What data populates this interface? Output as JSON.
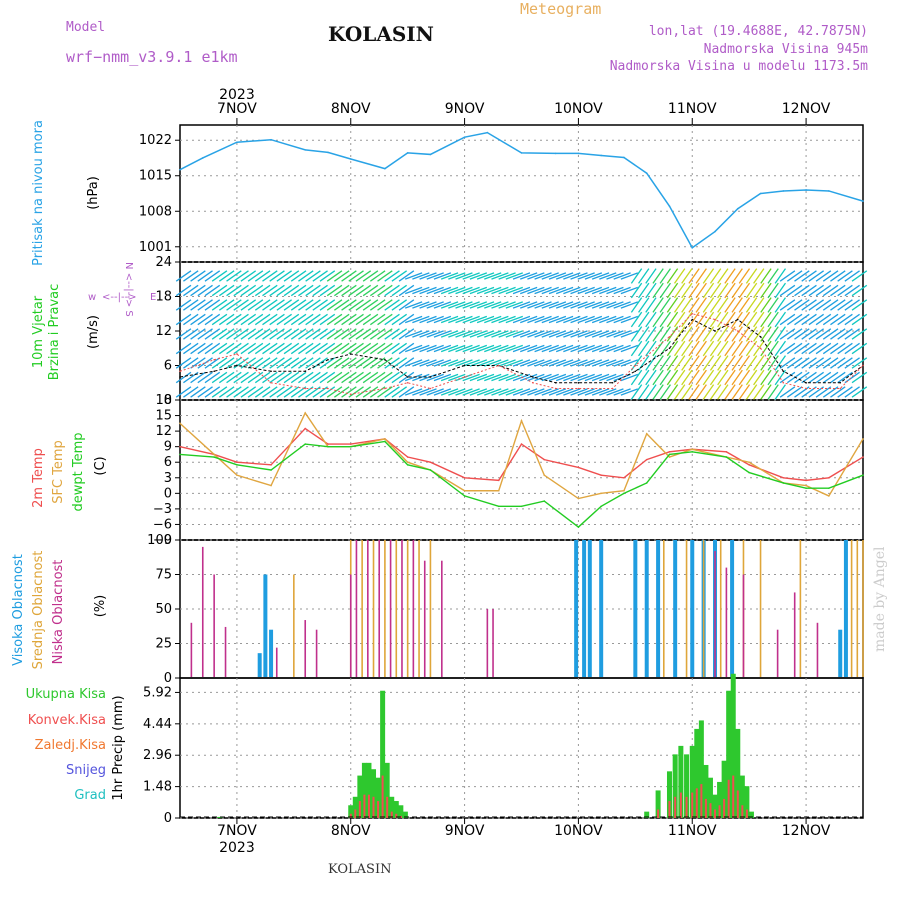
{
  "header": {
    "model_label": "Model",
    "model_name": "wrf−nmm_v3.9.1  e1km",
    "title": "KOLASIN",
    "meteogram_label": "Meteogram",
    "lonlat": "lon,lat (19.4688E, 42.7875N)",
    "altitude": "Nadmorska Visina 945m",
    "model_altitude": "Nadmorska Visina u modelu 1173.5m"
  },
  "footer": {
    "station": "KOLASIN"
  },
  "watermark": "made by Angel",
  "colors": {
    "pressure": "#29a3e6",
    "temp2m": "#ef4f4f",
    "sfc": "#e0a640",
    "dewpt": "#22cc22",
    "cloud_high": "#1f9de0",
    "cloud_mid": "#dfa63a",
    "cloud_low": "#c0308c",
    "precip_total": "#2ec82e",
    "precip_conv": "#ef4f4f",
    "precip_frozen": "#f07830",
    "snow": "#5555dd",
    "grad": "#20c0c0",
    "label_magenta": "#b05cc8"
  },
  "chart_data": [
    {
      "type": "line",
      "title": "Pritisak na nivou mora",
      "ylabel": "(hPa)",
      "ylim": [
        998,
        1025
      ],
      "yticks": [
        "1001",
        "1008",
        "1015",
        "1022"
      ],
      "top_year": "2023",
      "x_categories": [
        "7NOV",
        "8NOV",
        "9NOV",
        "10NOV",
        "11NOV",
        "12NOV"
      ],
      "x": [
        6.5,
        6.7,
        7.0,
        7.3,
        7.6,
        7.8,
        8.0,
        8.3,
        8.5,
        8.7,
        9.0,
        9.2,
        9.5,
        9.8,
        10.0,
        10.2,
        10.4,
        10.6,
        10.8,
        11.0,
        11.2,
        11.4,
        11.6,
        11.8,
        12.0,
        12.2,
        12.5
      ],
      "series": [
        {
          "values": [
            1016.2,
            1018.5,
            1021.6,
            1022.1,
            1020.1,
            1019.6,
            1018.3,
            1016.4,
            1019.5,
            1019.2,
            1022.6,
            1023.5,
            1019.5,
            1019.4,
            1019.4,
            1019.0,
            1018.6,
            1015.5,
            1009.0,
            1000.8,
            1004.0,
            1008.5,
            1011.5,
            1012.0,
            1012.2,
            1012.0,
            1010.0
          ]
        }
      ],
      "grid": true
    },
    {
      "type": "scatter",
      "title": "10m Vjetar Brzina i Pravac",
      "ylabel": "(m/s)",
      "ylim": [
        0,
        24
      ],
      "yticks": [
        "0",
        "6",
        "12",
        "18",
        "24"
      ],
      "compass_labels": [
        "w",
        "<--|-->",
        "E",
        "N",
        "S"
      ],
      "x": [
        6.5,
        6.8,
        7.0,
        7.3,
        7.6,
        7.8,
        8.0,
        8.3,
        8.5,
        8.7,
        9.0,
        9.3,
        9.6,
        9.8,
        10.0,
        10.3,
        10.5,
        10.8,
        11.0,
        11.2,
        11.4,
        11.6,
        11.8,
        12.0,
        12.3,
        12.5
      ],
      "series": [
        {
          "values": [
            4,
            5,
            6,
            5,
            5,
            7,
            8,
            7,
            4,
            4,
            6,
            6,
            4,
            3,
            3,
            3,
            5,
            9,
            14,
            12,
            14,
            11,
            5,
            3,
            3,
            6
          ]
        },
        {
          "values": [
            5,
            7,
            8,
            3,
            2,
            2,
            1,
            2,
            3,
            2,
            4,
            6,
            3,
            2,
            2,
            2,
            6,
            11,
            15,
            14,
            12,
            9,
            3,
            2,
            2,
            6
          ]
        }
      ],
      "grid": true
    },
    {
      "type": "line",
      "title": "2m Temp / SFC Temp / dewpt Temp",
      "ylabel": "(C)",
      "ylim": [
        -9,
        18
      ],
      "yticks": [
        "−9",
        "−6",
        "−3",
        "0",
        "3",
        "6",
        "9",
        "12",
        "15",
        "18"
      ],
      "x": [
        6.5,
        6.8,
        7.0,
        7.3,
        7.6,
        7.8,
        8.0,
        8.3,
        8.5,
        8.7,
        9.0,
        9.3,
        9.5,
        9.7,
        10.0,
        10.2,
        10.4,
        10.6,
        10.8,
        11.0,
        11.3,
        11.5,
        11.8,
        12.0,
        12.2,
        12.5
      ],
      "series": [
        {
          "name": "2m Temp",
          "values": [
            9.0,
            7.5,
            6.0,
            5.5,
            12.5,
            9.5,
            9.5,
            10.5,
            7.0,
            6.0,
            3.0,
            2.5,
            9.5,
            6.5,
            5.0,
            3.5,
            3.0,
            6.5,
            8.0,
            8.5,
            8.0,
            5.5,
            3.0,
            2.5,
            3.0,
            7.0
          ]
        },
        {
          "name": "SFC Temp",
          "values": [
            13.5,
            7.5,
            3.5,
            1.5,
            15.5,
            9.0,
            9.0,
            10.5,
            6.0,
            4.5,
            0.5,
            0.5,
            14.0,
            3.5,
            -1.0,
            0.0,
            0.5,
            11.5,
            7.0,
            8.5,
            7.0,
            6.0,
            2.0,
            1.5,
            -0.5,
            10.5
          ]
        },
        {
          "name": "dewpt Temp",
          "values": [
            7.5,
            7.0,
            5.5,
            4.5,
            9.5,
            9.0,
            9.0,
            10.0,
            5.5,
            4.5,
            -0.5,
            -2.5,
            -2.5,
            -1.5,
            -6.5,
            -2.5,
            0.0,
            2.0,
            7.5,
            8.0,
            7.0,
            4.0,
            2.0,
            1.0,
            1.0,
            3.5
          ]
        }
      ],
      "grid": true
    },
    {
      "type": "bar",
      "title": "Visoka Oblacnost / Srednja Oblacnost / Niska Oblacnost",
      "ylabel": "(%)",
      "ylim": [
        0,
        100
      ],
      "yticks": [
        "0",
        "25",
        "50",
        "75",
        "100"
      ],
      "series": [
        {
          "name": "Visoka Oblacnost",
          "x": [
            7.2,
            7.25,
            7.3,
            9.98,
            10.05,
            10.1,
            10.2,
            10.5,
            10.6,
            10.7,
            10.85,
            11.0,
            11.1,
            11.2,
            11.35,
            12.3,
            12.35
          ],
          "values": [
            18,
            75,
            35,
            100,
            100,
            100,
            100,
            100,
            100,
            100,
            100,
            100,
            100,
            100,
            100,
            35,
            100
          ]
        },
        {
          "name": "Srednja Oblacnost",
          "x": [
            7.5,
            8.0,
            8.1,
            8.2,
            8.3,
            8.4,
            8.5,
            8.6,
            8.7,
            10.75,
            10.95,
            11.1,
            11.25,
            11.45,
            11.6,
            11.95,
            12.4,
            12.45,
            12.5
          ],
          "values": [
            75,
            100,
            100,
            100,
            100,
            100,
            100,
            100,
            100,
            100,
            100,
            100,
            100,
            100,
            100,
            100,
            100,
            100,
            100
          ]
        },
        {
          "name": "Niska Oblacnost",
          "x": [
            6.6,
            6.7,
            6.8,
            6.9,
            7.35,
            7.6,
            7.7,
            8.0,
            8.05,
            8.15,
            8.25,
            8.35,
            8.45,
            8.55,
            8.65,
            8.8,
            9.2,
            9.25,
            11.2,
            11.3,
            11.45,
            11.75,
            11.9,
            12.1
          ],
          "values": [
            40,
            95,
            75,
            37,
            22,
            42,
            35,
            75,
            100,
            100,
            100,
            100,
            100,
            100,
            85,
            85,
            50,
            50,
            92,
            80,
            75,
            35,
            62,
            40
          ]
        }
      ],
      "grid": true
    },
    {
      "type": "bar",
      "title": "1hr Precip",
      "ylabel": "1hr Precip (mm)",
      "ylim": [
        0,
        6.6
      ],
      "yticks": [
        "0",
        "1.48",
        "2.96",
        "4.44",
        "5.92"
      ],
      "x_categories": [
        "7NOV",
        "8NOV",
        "9NOV",
        "10NOV",
        "11NOV",
        "12NOV"
      ],
      "bottom_year": "2023",
      "legend": [
        "Ukupna Kisa",
        "Konvek.Kisa",
        "Zaledj.Kisa",
        "Snijeg",
        "Grad"
      ],
      "x": [
        6.85,
        8.0,
        8.04,
        8.08,
        8.12,
        8.16,
        8.2,
        8.24,
        8.28,
        8.32,
        8.36,
        8.4,
        8.44,
        8.48,
        10.6,
        10.7,
        10.8,
        10.85,
        10.9,
        10.95,
        11.0,
        11.04,
        11.08,
        11.12,
        11.16,
        11.2,
        11.24,
        11.28,
        11.32,
        11.36,
        11.4,
        11.44,
        11.48,
        11.52
      ],
      "series": [
        {
          "name": "Ukupna Kisa",
          "values": [
            0.05,
            0.6,
            1.0,
            2.0,
            2.6,
            2.6,
            2.3,
            1.9,
            6.0,
            2.6,
            1.0,
            0.8,
            0.6,
            0.3,
            0.3,
            1.3,
            2.2,
            3.0,
            3.4,
            3.0,
            3.4,
            4.2,
            4.6,
            2.5,
            1.9,
            1.1,
            1.7,
            2.7,
            6.0,
            6.8,
            4.2,
            2.0,
            1.5,
            0.3
          ]
        },
        {
          "name": "Konvek.Kisa",
          "values": [
            0,
            0.2,
            0.4,
            0.8,
            1.1,
            1.1,
            1.0,
            0.8,
            2.0,
            1.0,
            0.3,
            0.2,
            0.1,
            0,
            0,
            0.4,
            0.8,
            1.0,
            1.2,
            1.0,
            1.2,
            1.4,
            1.6,
            0.9,
            0.7,
            0.4,
            0.6,
            0.9,
            1.8,
            2.0,
            1.3,
            0.6,
            0.4,
            0
          ]
        }
      ],
      "grid": true
    }
  ]
}
